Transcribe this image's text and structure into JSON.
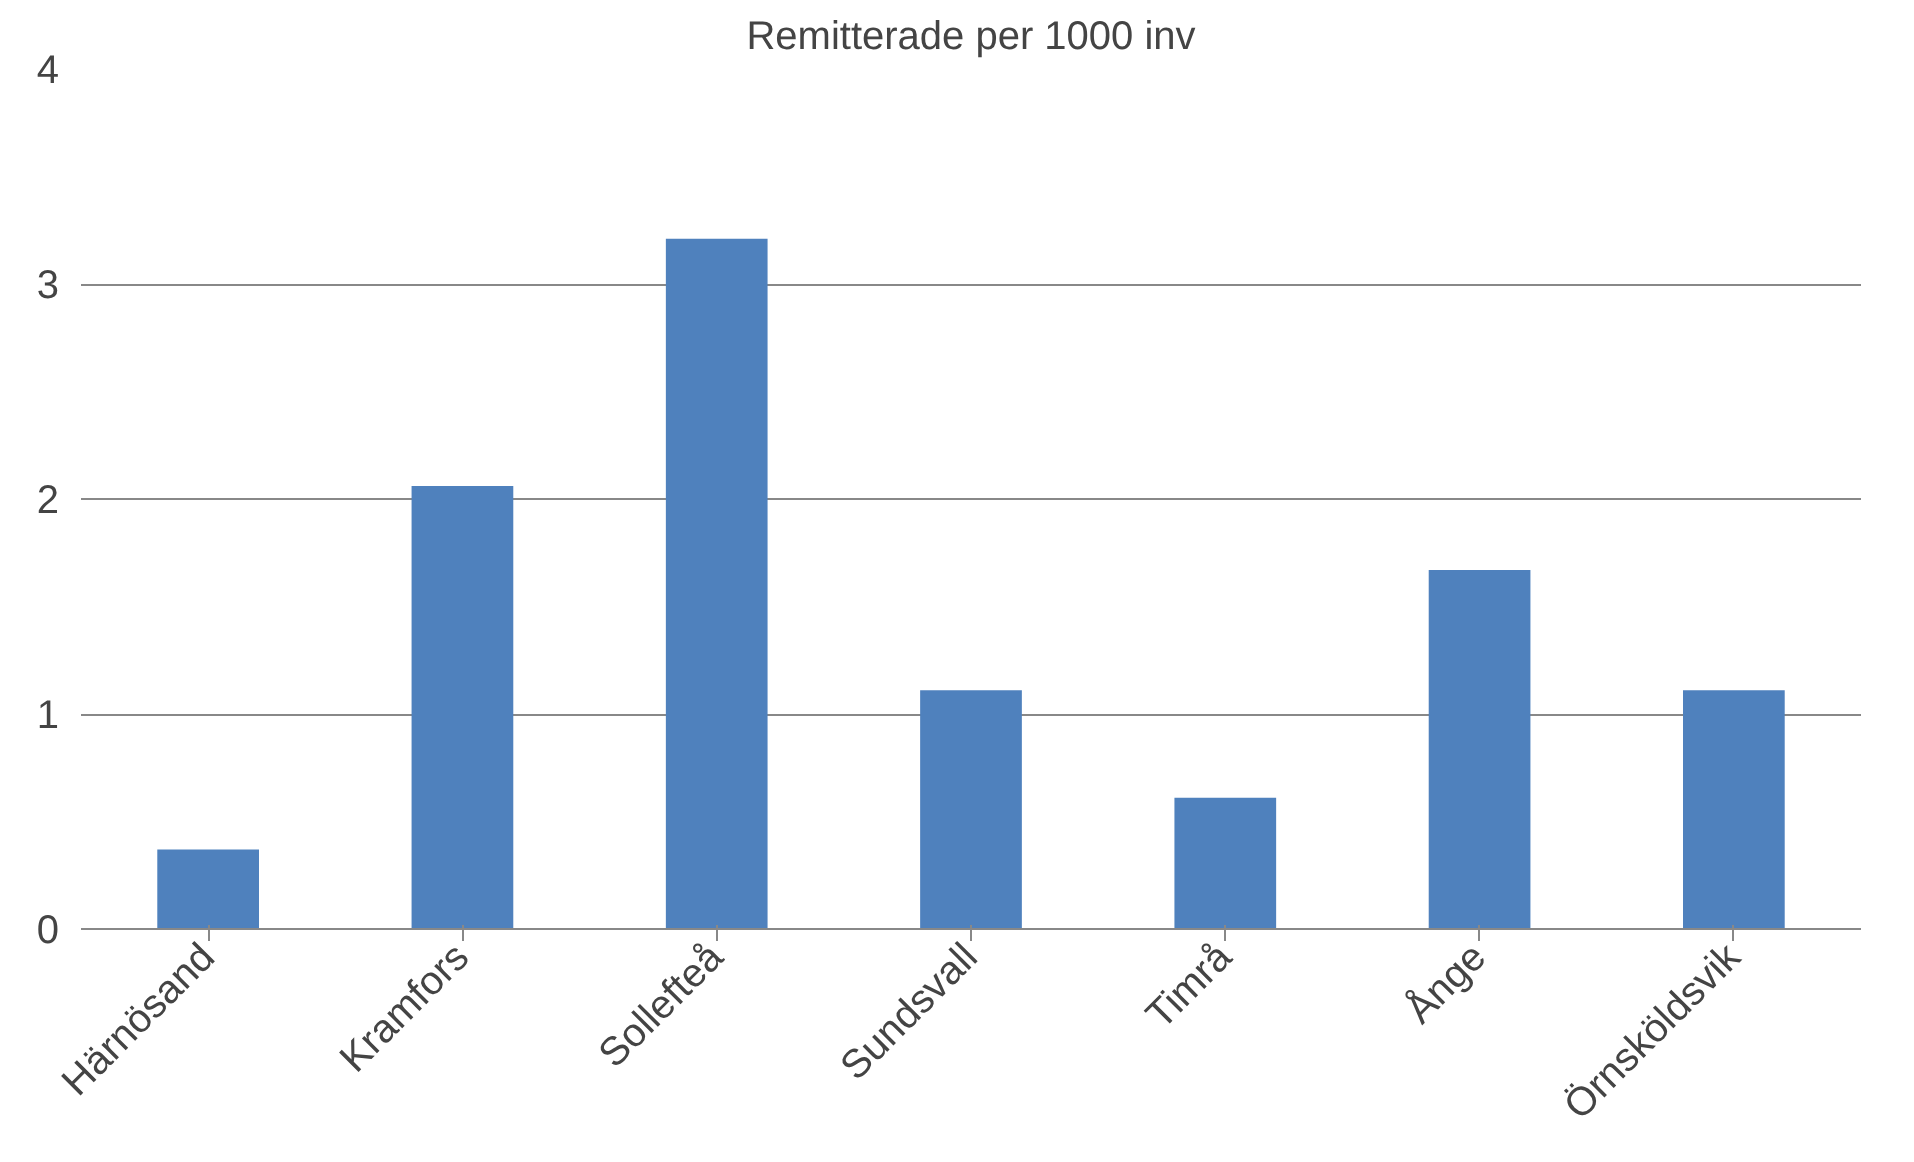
{
  "chart_data": {
    "type": "bar",
    "title": "Remitterade per 1000 inv",
    "categories": [
      "Härnösand",
      "Kramfors",
      "Sollefteå",
      "Sundsvall",
      "Timrå",
      "Ånge",
      "Örnsköldsvik"
    ],
    "values": [
      0.37,
      2.06,
      3.21,
      1.11,
      0.61,
      1.67,
      1.11
    ],
    "color": "#4f81bd",
    "ylim": [
      0,
      4
    ],
    "yticks": [
      0,
      1,
      2,
      3,
      4
    ],
    "grid": "y"
  }
}
